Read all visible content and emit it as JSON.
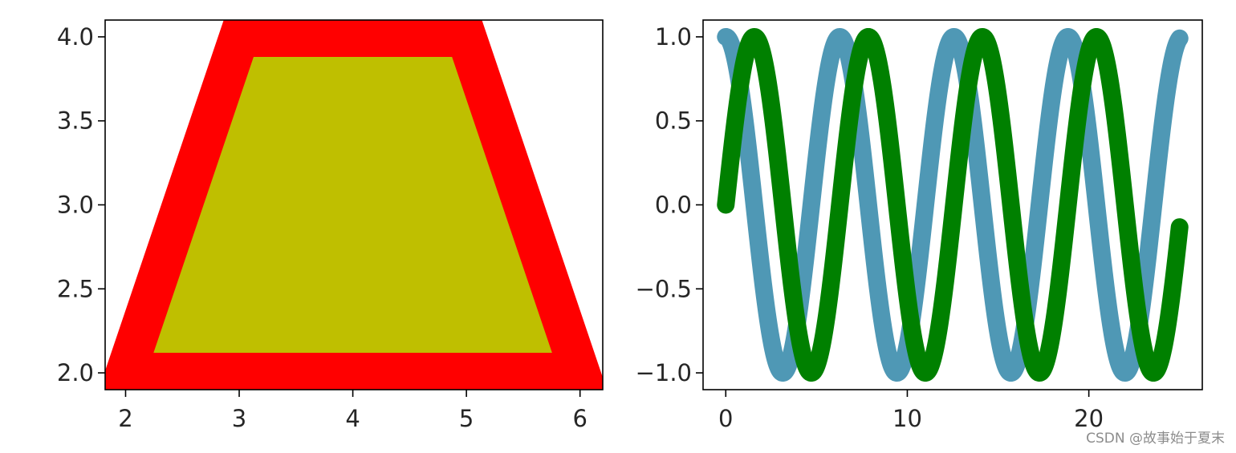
{
  "chart_data": [
    {
      "type": "polygon",
      "xlim": [
        1.82,
        6.2
      ],
      "ylim": [
        1.9,
        4.1
      ],
      "xticks": [
        2,
        3,
        4,
        5,
        6
      ],
      "xtick_labels": [
        "2",
        "3",
        "4",
        "5",
        "6"
      ],
      "yticks": [
        2.0,
        2.5,
        3.0,
        3.5,
        4.0
      ],
      "ytick_labels": [
        "2.0",
        "2.5",
        "3.0",
        "3.5",
        "4.0"
      ],
      "polygon": {
        "vertices": [
          [
            2.0,
            2.0
          ],
          [
            3.0,
            4.0
          ],
          [
            5.0,
            4.0
          ],
          [
            6.0,
            2.0
          ]
        ],
        "facecolor": "#bfbf00",
        "edgecolor": "#ff0000"
      }
    },
    {
      "type": "line",
      "xlim": [
        -1.25,
        26.25
      ],
      "ylim": [
        -1.1,
        1.1
      ],
      "xticks": [
        0,
        10,
        20
      ],
      "xtick_labels": [
        "0",
        "10",
        "20"
      ],
      "yticks": [
        -1.0,
        -0.5,
        0.0,
        0.5,
        1.0
      ],
      "ytick_labels": [
        "−1.0",
        "−0.5",
        "0.0",
        "0.5",
        "1.0"
      ],
      "series": [
        {
          "function": "cos",
          "x_range": [
            0,
            25
          ],
          "color": "#4f98b5"
        },
        {
          "function": "sin",
          "x_range": [
            0,
            25
          ],
          "color": "#008000"
        }
      ]
    }
  ],
  "watermark": "CSDN @故事始于夏末"
}
